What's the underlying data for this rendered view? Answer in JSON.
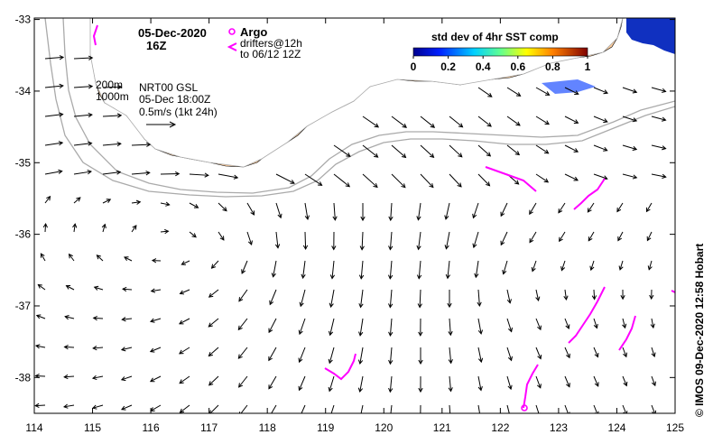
{
  "map": {
    "date_label": "05-Dec-2020",
    "time_label": "16Z",
    "argo_label": "Argo",
    "drifters_label": "drifters@12h",
    "drifters_to_label": "to 06/12 12Z",
    "depth_label_1": "200m",
    "depth_label_2": "1000m",
    "model_label": "NRT00 GSL",
    "model_time_label": "05-Dec 18:00Z",
    "scale_label": "0.5m/s (1kt 24h)",
    "credit": "© IMOS 09-Dec-2020 12:58 Hobart",
    "colorbar": {
      "title": "std dev of 4hr SST comp",
      "ticks": [
        "0",
        "0.2",
        "0.4",
        "0.6",
        "0.8",
        "1"
      ]
    },
    "x_ticks": [
      "114",
      "115",
      "116",
      "117",
      "118",
      "119",
      "120",
      "121",
      "122",
      "123",
      "124",
      "125"
    ],
    "y_ticks": [
      "-33",
      "-34",
      "-35",
      "-36",
      "-37",
      "-38"
    ],
    "colors": {
      "land": "#fccc9c",
      "drifter": "#ff00ff",
      "contour": "#aaaaaa",
      "arrow": "#000000"
    }
  }
}
